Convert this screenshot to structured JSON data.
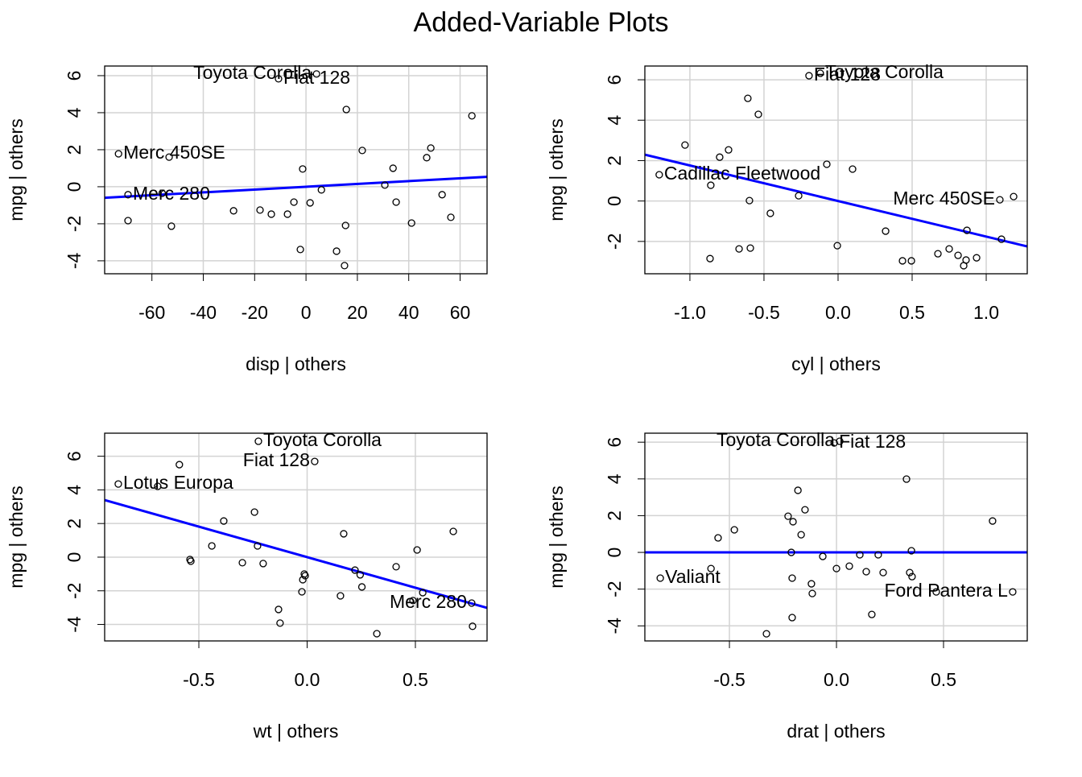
{
  "title": "Added-Variable Plots",
  "chart_data": [
    {
      "type": "scatter",
      "xlabel": "disp | others",
      "ylabel": "mpg  | others",
      "x": [
        -73,
        -69.3,
        -69.3,
        -53.3,
        -52.4,
        -56,
        -28.2,
        -17.9,
        -13.5,
        -7.2,
        -10.7,
        -4.7,
        -2.2,
        -1.3,
        1.6,
        4.1,
        6,
        11.9,
        15,
        15.4,
        15.7,
        21.9,
        30.7,
        33.9,
        35.1,
        41.1,
        47,
        48.6,
        53,
        56.4,
        64.6
      ],
      "y": [
        1.78,
        -0.43,
        -1.83,
        1.6,
        -2.13,
        -0.35,
        -1.3,
        -1.26,
        -1.48,
        -1.48,
        5.83,
        -0.83,
        -3.39,
        0.96,
        -0.87,
        6.09,
        -0.17,
        -3.48,
        -4.26,
        -2.09,
        4.17,
        1.96,
        0.09,
        1,
        -0.83,
        -1.96,
        1.57,
        2.09,
        -0.43,
        -1.65,
        3.83
      ],
      "point_labels": [
        "Merc 450SE",
        "Merc 280",
        null,
        null,
        null,
        null,
        null,
        null,
        null,
        null,
        "Fiat 128",
        null,
        null,
        null,
        null,
        "Toyota Corolla",
        null,
        null,
        null,
        null,
        null,
        null,
        null,
        null,
        null,
        null,
        null,
        null,
        null,
        null,
        null
      ],
      "xlim": [
        -78.4,
        70.5
      ],
      "ylim": [
        -4.7,
        6.52
      ],
      "xticks": [
        -60,
        -40,
        -20,
        0,
        20,
        40,
        60
      ],
      "yticks": [
        -4,
        -2,
        0,
        2,
        4,
        6
      ],
      "grid": true,
      "point_color": "#000000",
      "fit": {
        "intercept": 0,
        "slope": 0.0076,
        "color": "#0000ff"
      }
    },
    {
      "type": "scatter",
      "xlabel": "cyl | others",
      "ylabel": "mpg  | others",
      "x": [
        -1.207,
        -1.033,
        -0.859,
        -0.864,
        -0.799,
        -0.739,
        -0.668,
        -0.609,
        -0.598,
        -0.592,
        -0.538,
        -0.457,
        -0.266,
        -0.196,
        -0.12,
        -0.076,
        -0.005,
        0.098,
        0.321,
        0.435,
        0.495,
        0.674,
        0.75,
        0.81,
        0.848,
        0.864,
        0.87,
        0.935,
        1.092,
        1.103,
        1.185
      ],
      "y": [
        1.3,
        2.77,
        0.78,
        -2.85,
        2.17,
        2.53,
        -2.37,
        5.08,
        0.02,
        -2.33,
        4.29,
        -0.61,
        0.26,
        6.2,
        6.32,
        1.82,
        -2.21,
        1.58,
        -1.49,
        -2.96,
        -2.96,
        -2.61,
        -2.37,
        -2.69,
        -3.2,
        -2.92,
        -1.45,
        -2.81,
        0.06,
        -1.89,
        0.22
      ],
      "point_labels": [
        "Cadillac Fleetwood",
        null,
        null,
        null,
        null,
        null,
        null,
        null,
        null,
        null,
        null,
        null,
        null,
        "Fiat 128",
        "Toyota Corolla",
        null,
        null,
        null,
        null,
        null,
        null,
        null,
        null,
        null,
        null,
        null,
        null,
        null,
        "Merc 450SE",
        null,
        null
      ],
      "xlim": [
        -1.304,
        1.277
      ],
      "ylim": [
        -3.6,
        6.68
      ],
      "xticks": [
        {
          "value": -1,
          "label": "-1.0"
        },
        -0.5,
        {
          "value": 0,
          "label": "0.0"
        },
        0.5,
        {
          "value": 1,
          "label": "1.0"
        }
      ],
      "yticks": [
        -2,
        0,
        2,
        4,
        6
      ],
      "grid": true,
      "point_color": "#000000",
      "fit": {
        "intercept": 0,
        "slope": -1.76,
        "color": "#0000ff"
      }
    },
    {
      "type": "scatter",
      "xlabel": "wt | others",
      "ylabel": "mpg  | others",
      "x": [
        -0.872,
        -0.69,
        -0.59,
        -0.541,
        -0.537,
        -0.44,
        -0.385,
        -0.299,
        -0.243,
        -0.229,
        -0.225,
        -0.203,
        -0.132,
        -0.125,
        -0.024,
        -0.02,
        -0.013,
        -0.009,
        0.035,
        0.154,
        0.169,
        0.221,
        0.245,
        0.253,
        0.322,
        0.411,
        0.489,
        0.508,
        0.534,
        0.675,
        0.76,
        0.764
      ],
      "y": [
        4.35,
        4.21,
        5.5,
        -0.14,
        -0.24,
        0.67,
        2.15,
        -0.33,
        2.68,
        0.67,
        6.89,
        -0.38,
        -3.11,
        -3.92,
        -2.06,
        -1.34,
        -1.0,
        -1.1,
        5.69,
        -2.3,
        1.39,
        -0.77,
        -1.05,
        -1.77,
        -4.55,
        -0.57,
        -2.58,
        0.43,
        -2.11,
        1.53,
        -2.73,
        -4.11
      ],
      "point_labels": [
        "Lotus Europa",
        null,
        null,
        null,
        null,
        null,
        null,
        null,
        null,
        null,
        "Toyota Corolla",
        null,
        null,
        null,
        null,
        null,
        null,
        null,
        "Fiat 128",
        null,
        null,
        null,
        null,
        null,
        null,
        null,
        null,
        null,
        null,
        null,
        "Merc 280",
        null
      ],
      "xlim": [
        -0.935,
        0.831
      ],
      "ylim": [
        -4.98,
        7.37
      ],
      "xticks": [
        -0.5,
        {
          "value": 0,
          "label": "0.0"
        },
        0.5
      ],
      "yticks": [
        -4,
        -2,
        0,
        2,
        4,
        6
      ],
      "grid": true,
      "point_color": "#000000",
      "fit": {
        "intercept": 0,
        "slope": -3.63,
        "color": "#0000ff"
      }
    },
    {
      "type": "scatter",
      "xlabel": "drat | others",
      "ylabel": "mpg  | others",
      "x": [
        -0.823,
        -0.586,
        -0.553,
        -0.477,
        -0.327,
        -0.226,
        -0.211,
        -0.207,
        -0.203,
        -0.207,
        -0.18,
        -0.165,
        -0.147,
        -0.117,
        -0.113,
        -0.064,
        -0.011,
        0,
        0.015,
        0.06,
        0.109,
        0.139,
        0.165,
        0.195,
        0.218,
        0.327,
        0.342,
        0.35,
        0.353,
        0.466,
        0.729,
        0.823
      ],
      "y": [
        -1.4,
        -0.88,
        0.79,
        1.23,
        -4.43,
        1.97,
        0.0,
        -1.4,
        1.67,
        -3.55,
        3.38,
        0.96,
        2.32,
        -1.71,
        -2.24,
        -0.22,
        5.96,
        -0.88,
        6.05,
        -0.75,
        -0.13,
        -1.05,
        -3.38,
        -0.13,
        -1.1,
        3.99,
        -1.1,
        0.09,
        -1.32,
        -2.15,
        1.71,
        -2.15
      ],
      "point_labels": [
        "Valiant",
        null,
        null,
        null,
        null,
        null,
        null,
        null,
        null,
        null,
        null,
        null,
        null,
        null,
        null,
        null,
        "Fiat 128",
        null,
        "Toyota Corolla",
        null,
        null,
        null,
        null,
        null,
        null,
        null,
        null,
        null,
        null,
        null,
        null,
        "Ford Pantera L"
      ],
      "xlim": [
        -0.895,
        0.891
      ],
      "ylim": [
        -4.82,
        6.49
      ],
      "xticks": [
        -0.5,
        {
          "value": 0,
          "label": "0.0"
        },
        0.5
      ],
      "yticks": [
        -4,
        -2,
        0,
        2,
        4,
        6
      ],
      "grid": true,
      "point_color": "#000000",
      "fit": {
        "intercept": 0,
        "slope": 0,
        "color": "#0000ff"
      }
    }
  ]
}
